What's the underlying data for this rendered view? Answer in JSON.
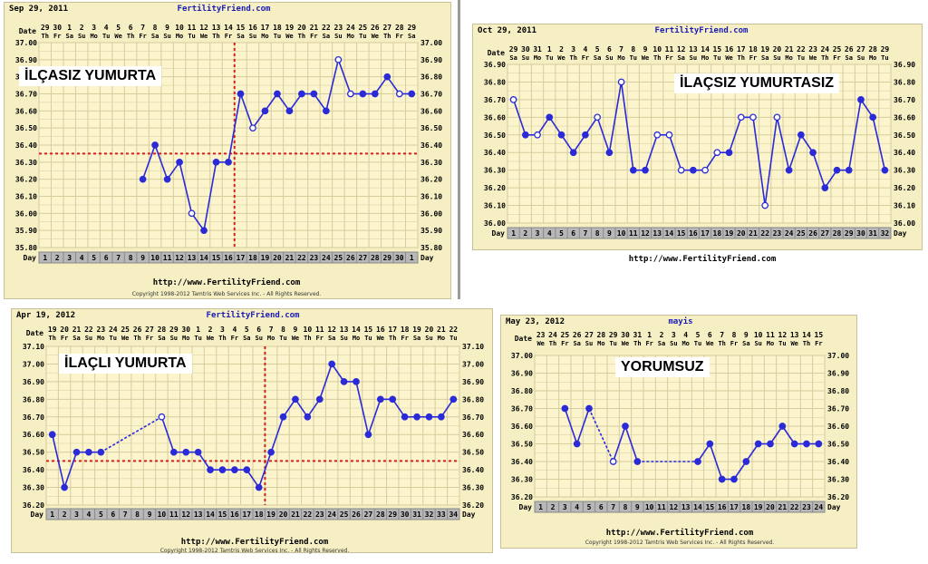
{
  "site": "FertilityFriend.com",
  "footer_url": "http://www.FertilityFriend.com",
  "copyright": "Copyright 1998-2012 Tamtris Web Services Inc. - All Rights Reserved.",
  "colors": {
    "panel_bg": "#f5efc3",
    "grid": "#d6cd9c",
    "line": "#2a2ad8",
    "coverline": "#d42020",
    "day_row": "#b8b8b8"
  },
  "chart_data": [
    {
      "type": "line",
      "start_date": "Sep 29, 2011",
      "title": "İLÇASIZ YUMURTA",
      "dates": [
        "29",
        "30",
        "1",
        "2",
        "3",
        "4",
        "5",
        "6",
        "7",
        "8",
        "9",
        "10",
        "11",
        "12",
        "13",
        "14",
        "15",
        "16",
        "17",
        "18",
        "19",
        "20",
        "21",
        "22",
        "23",
        "24",
        "25",
        "26",
        "27",
        "28",
        "29"
      ],
      "weekdays": [
        "Th",
        "Fr",
        "Sa",
        "Su",
        "Mo",
        "Tu",
        "We",
        "Th",
        "Fr",
        "Sa",
        "Su",
        "Mo",
        "Tu",
        "We",
        "Th",
        "Fr",
        "Sa",
        "Su",
        "Mo",
        "Tu",
        "We",
        "Th",
        "Fr",
        "Sa",
        "Su",
        "Mo",
        "Tu",
        "We",
        "Th",
        "Fr",
        "Sa"
      ],
      "days": [
        "1",
        "2",
        "3",
        "4",
        "5",
        "6",
        "7",
        "8",
        "9",
        "10",
        "11",
        "12",
        "13",
        "14",
        "15",
        "16",
        "17",
        "18",
        "19",
        "20",
        "21",
        "22",
        "23",
        "24",
        "25",
        "26",
        "27",
        "28",
        "29",
        "30",
        "1"
      ],
      "ylim": [
        35.8,
        37.0
      ],
      "yticks": [
        "37.00",
        "36.90",
        "36.80",
        "36.70",
        "36.60",
        "36.50",
        "36.40",
        "36.30",
        "36.20",
        "36.10",
        "36.00",
        "35.90",
        "35.80"
      ],
      "temps": [
        null,
        null,
        null,
        null,
        null,
        null,
        null,
        null,
        36.2,
        36.4,
        36.2,
        36.3,
        36.0,
        35.9,
        36.3,
        36.3,
        36.7,
        36.5,
        36.6,
        36.7,
        36.6,
        36.7,
        36.7,
        36.6,
        36.9,
        36.7,
        36.7,
        36.7,
        36.8,
        36.7,
        36.7
      ],
      "open_points": [
        12,
        17,
        24,
        25,
        29
      ],
      "coverline": 36.35,
      "ovulation_day": 16
    },
    {
      "type": "line",
      "start_date": "Oct 29, 2011",
      "title": "İLAÇSIZ YUMURTASIZ",
      "dates": [
        "29",
        "30",
        "31",
        "1",
        "2",
        "3",
        "4",
        "5",
        "6",
        "7",
        "8",
        "9",
        "10",
        "11",
        "12",
        "13",
        "14",
        "15",
        "16",
        "17",
        "18",
        "19",
        "20",
        "21",
        "22",
        "23",
        "24",
        "25",
        "26",
        "27",
        "28",
        "29"
      ],
      "weekdays": [
        "Sa",
        "Su",
        "Mo",
        "Tu",
        "We",
        "Th",
        "Fr",
        "Sa",
        "Su",
        "Mo",
        "Tu",
        "We",
        "Th",
        "Fr",
        "Sa",
        "Su",
        "Mo",
        "Tu",
        "We",
        "Th",
        "Fr",
        "Sa",
        "Su",
        "Mo",
        "Tu",
        "We",
        "Th",
        "Fr",
        "Sa",
        "Su",
        "Mo",
        "Tu"
      ],
      "days": [
        "1",
        "2",
        "3",
        "4",
        "5",
        "6",
        "7",
        "8",
        "9",
        "10",
        "11",
        "12",
        "13",
        "14",
        "15",
        "16",
        "17",
        "18",
        "19",
        "20",
        "21",
        "22",
        "23",
        "24",
        "25",
        "26",
        "27",
        "28",
        "29",
        "30",
        "31",
        "32"
      ],
      "ylim": [
        36.0,
        36.9
      ],
      "yticks": [
        "36.90",
        "36.80",
        "36.70",
        "36.60",
        "36.50",
        "36.40",
        "36.30",
        "36.20",
        "36.10",
        "36.00"
      ],
      "temps": [
        36.7,
        36.5,
        36.5,
        36.6,
        36.5,
        36.4,
        36.5,
        36.6,
        36.4,
        36.8,
        36.3,
        36.3,
        36.5,
        36.5,
        36.3,
        36.3,
        36.3,
        36.4,
        36.4,
        36.6,
        36.6,
        36.1,
        36.6,
        36.3,
        36.5,
        36.4,
        36.2,
        36.3,
        36.3,
        36.7,
        36.6,
        36.3
      ],
      "open_points": [
        0,
        2,
        7,
        9,
        12,
        13,
        14,
        16,
        17,
        19,
        20,
        21,
        22
      ],
      "coverline": null,
      "ovulation_day": null
    },
    {
      "type": "line",
      "start_date": "Apr 19, 2012",
      "title": "İLAÇLI YUMURTA",
      "dates": [
        "19",
        "20",
        "21",
        "22",
        "23",
        "24",
        "25",
        "26",
        "27",
        "28",
        "29",
        "30",
        "1",
        "2",
        "3",
        "4",
        "5",
        "6",
        "7",
        "8",
        "9",
        "10",
        "11",
        "12",
        "13",
        "14",
        "15",
        "16",
        "17",
        "18",
        "19",
        "20",
        "21",
        "22"
      ],
      "weekdays": [
        "Th",
        "Fr",
        "Sa",
        "Su",
        "Mo",
        "Tu",
        "We",
        "Th",
        "Fr",
        "Sa",
        "Su",
        "Mo",
        "Tu",
        "We",
        "Th",
        "Fr",
        "Sa",
        "Su",
        "Mo",
        "Tu",
        "We",
        "Th",
        "Fr",
        "Sa",
        "Su",
        "Mo",
        "Tu",
        "We",
        "Th",
        "Fr",
        "Sa",
        "Su",
        "Mo",
        "Tu"
      ],
      "days": [
        "1",
        "2",
        "3",
        "4",
        "5",
        "6",
        "7",
        "8",
        "9",
        "10",
        "11",
        "12",
        "13",
        "14",
        "15",
        "16",
        "17",
        "18",
        "19",
        "20",
        "21",
        "22",
        "23",
        "24",
        "25",
        "26",
        "27",
        "28",
        "29",
        "30",
        "31",
        "32",
        "33",
        "34"
      ],
      "ylim": [
        36.2,
        37.1
      ],
      "yticks": [
        "37.10",
        "37.00",
        "36.90",
        "36.80",
        "36.70",
        "36.60",
        "36.50",
        "36.40",
        "36.30",
        "36.20"
      ],
      "temps": [
        36.6,
        36.3,
        36.5,
        36.5,
        36.5,
        null,
        null,
        null,
        null,
        36.7,
        36.5,
        36.5,
        36.5,
        36.4,
        36.4,
        36.4,
        36.4,
        36.3,
        36.5,
        36.7,
        36.8,
        36.7,
        36.8,
        37.0,
        36.9,
        36.9,
        36.6,
        36.8,
        36.8,
        36.7,
        36.7,
        36.7,
        36.7,
        36.8
      ],
      "open_points": [
        9
      ],
      "coverline": 36.45,
      "ovulation_day": 18
    },
    {
      "type": "line",
      "start_date": "May 23, 2012",
      "month_label": "mayis",
      "title": "YORUMSUZ",
      "dates": [
        "23",
        "24",
        "25",
        "26",
        "27",
        "28",
        "29",
        "30",
        "31",
        "1",
        "2",
        "3",
        "4",
        "5",
        "6",
        "7",
        "8",
        "9",
        "10",
        "11",
        "12",
        "13",
        "14",
        "15"
      ],
      "weekdays": [
        "We",
        "Th",
        "Fr",
        "Sa",
        "Su",
        "Mo",
        "Tu",
        "We",
        "Th",
        "Fr",
        "Sa",
        "Su",
        "Mo",
        "Tu",
        "We",
        "Th",
        "Fr",
        "Sa",
        "Su",
        "Mo",
        "Tu",
        "We",
        "Th",
        "Fr"
      ],
      "days": [
        "1",
        "2",
        "3",
        "4",
        "5",
        "6",
        "7",
        "8",
        "9",
        "10",
        "11",
        "12",
        "13",
        "14",
        "15",
        "16",
        "17",
        "18",
        "19",
        "20",
        "21",
        "22",
        "23",
        "24"
      ],
      "ylim": [
        36.2,
        37.0
      ],
      "yticks": [
        "37.00",
        "36.90",
        "36.80",
        "36.70",
        "36.60",
        "36.50",
        "36.40",
        "36.30",
        "36.20"
      ],
      "temps": [
        null,
        null,
        36.7,
        36.5,
        36.7,
        null,
        36.4,
        36.6,
        36.4,
        null,
        null,
        null,
        null,
        36.4,
        36.5,
        36.3,
        36.3,
        36.4,
        36.5,
        36.5,
        36.6,
        36.5,
        36.5,
        36.5
      ],
      "open_points": [
        6
      ],
      "coverline": null,
      "ovulation_day": null
    }
  ]
}
